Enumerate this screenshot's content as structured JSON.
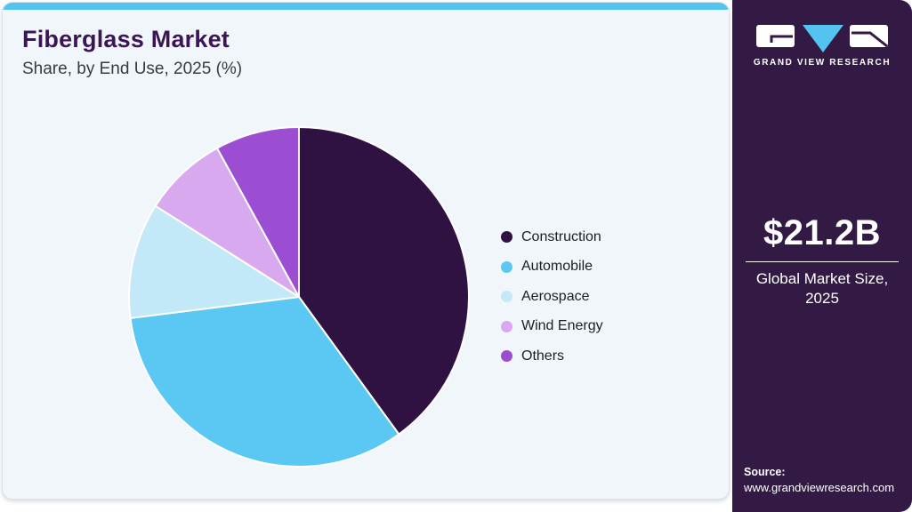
{
  "header": {
    "title": "Fiberglass Market",
    "subtitle": "Share, by End Use, 2025 (%)"
  },
  "chart_data": {
    "type": "pie",
    "title": "Fiberglass Market Share, by End Use, 2025 (%)",
    "labels": [
      "Construction",
      "Automobile",
      "Aerospace",
      "Wind Energy",
      "Others"
    ],
    "values": [
      40,
      33,
      11,
      8,
      8
    ],
    "unit": "%",
    "colors": [
      "#2f1242",
      "#5bc8f3",
      "#c3e9f9",
      "#d8a9ef",
      "#9c4ed2"
    ],
    "start_angle_deg": 0,
    "direction": "clockwise",
    "legend_position": "right",
    "slice_border_color": "#ffffff"
  },
  "sidebar": {
    "logo_text": "GRAND VIEW RESEARCH",
    "market_size_value": "$21.2B",
    "market_size_label": "Global Market Size,\n2025",
    "source_label": "Source:",
    "source_url": "www.grandviewresearch.com"
  },
  "theme": {
    "accent_bar": "#55c3f0",
    "sidebar_bg": "#331a44",
    "card_bg": "#f0f6fa",
    "title_color": "#3b1556",
    "logo_triangle": "#55c3f0"
  }
}
